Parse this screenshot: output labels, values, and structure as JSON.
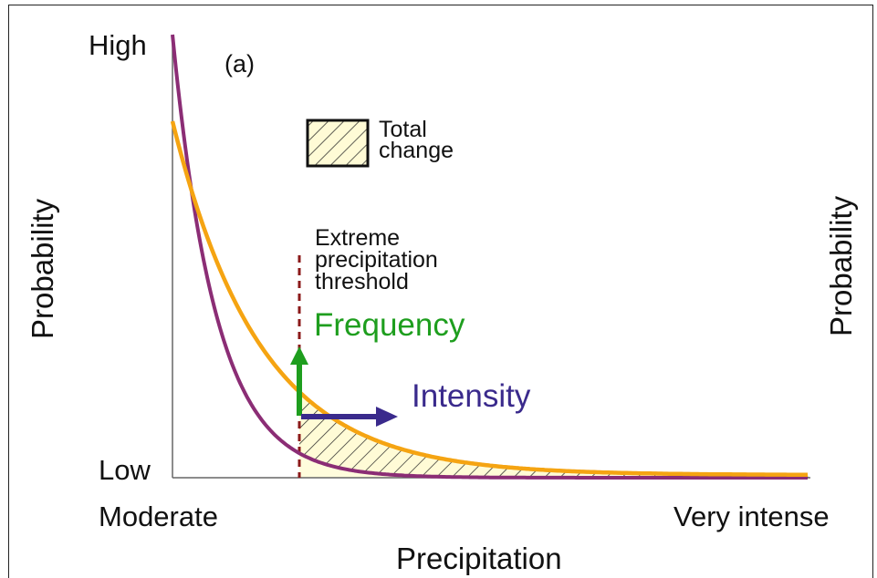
{
  "panel_label": "(a)",
  "y_axis": {
    "label": "Probability",
    "high_label": "High",
    "low_label": "Low"
  },
  "y_axis_right": {
    "label": "Probability"
  },
  "x_axis": {
    "label": "Precipitation",
    "left_label": "Moderate",
    "right_label": "Very intense"
  },
  "legend": {
    "line1": "Total",
    "line2": "change"
  },
  "threshold": {
    "line1": "Extreme",
    "line2": "precipitation",
    "line3": "threshold"
  },
  "arrows": {
    "frequency_label": "Frequency",
    "intensity_label": "Intensity"
  },
  "colors": {
    "purple_curve": "#8b2d75",
    "orange_curve": "#f5a412",
    "frequency": "#1e9e1e",
    "intensity": "#3a2a8c",
    "threshold_line": "#8b1a1a",
    "hatch_fill": "#fffbd6"
  }
}
